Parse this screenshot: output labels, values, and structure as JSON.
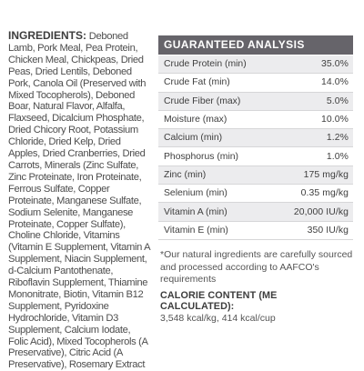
{
  "ingredients": {
    "heading": "INGREDIENTS:",
    "text": " Deboned Lamb, Pork Meal, Pea Protein, Chicken Meal, Chickpeas, Dried Peas, Dried Lentils, Deboned Pork, Canola Oil (Preserved with Mixed Tocopherols), Deboned Boar, Natural Flavor, Alfalfa, Flaxseed, Dicalcium Phosphate, Dried Chicory Root, Potassium Chloride, Dried Kelp, Dried Apples, Dried Cranberries, Dried Carrots, Minerals (Zinc Sulfate, Zinc Proteinate, Iron Proteinate, Ferrous Sulfate, Copper Proteinate, Manganese Sulfate, Sodium Selenite, Manganese Proteinate, Copper Sulfate), Choline Chloride, Vitamins (Vitamin E Supplement, Vitamin A Supplement, Niacin Supplement, d-Calcium Pantothenate, Riboflavin Supplement, Thiamine Mononitrate, Biotin, Vitamin B12 Supplement, Pyridoxine Hydrochloride, Vitamin D3 Supplement, Calcium Iodate, Folic Acid), Mixed Tocopherols (A Preservative), Citric Acid (A Preservative), Rosemary Extract"
  },
  "analysis": {
    "title": "GUARANTEED ANALYSIS",
    "rows": [
      {
        "name": "Crude Protein (min)",
        "value": "35.0%"
      },
      {
        "name": "Crude Fat (min)",
        "value": "14.0%"
      },
      {
        "name": "Crude Fiber (max)",
        "value": "5.0%"
      },
      {
        "name": "Moisture (max)",
        "value": "10.0%"
      },
      {
        "name": "Calcium (min)",
        "value": "1.2%"
      },
      {
        "name": "Phosphorus (min)",
        "value": "1.0%"
      },
      {
        "name": "Zinc (min)",
        "value": "175 mg/kg"
      },
      {
        "name": "Selenium (min)",
        "value": "0.35 mg/kg"
      },
      {
        "name": "Vitamin A (min)",
        "value": "20,000 IU/kg"
      },
      {
        "name": "Vitamin E (min)",
        "value": "350 IU/kg"
      }
    ]
  },
  "note": "*Our natural ingredients are carefully sourced and processed according to AAFCO's requirements",
  "calorie": {
    "title": "CALORIE CONTENT (ME CALCULATED):",
    "value": "3,548 kcal/kg, 414 kcal/cup"
  }
}
